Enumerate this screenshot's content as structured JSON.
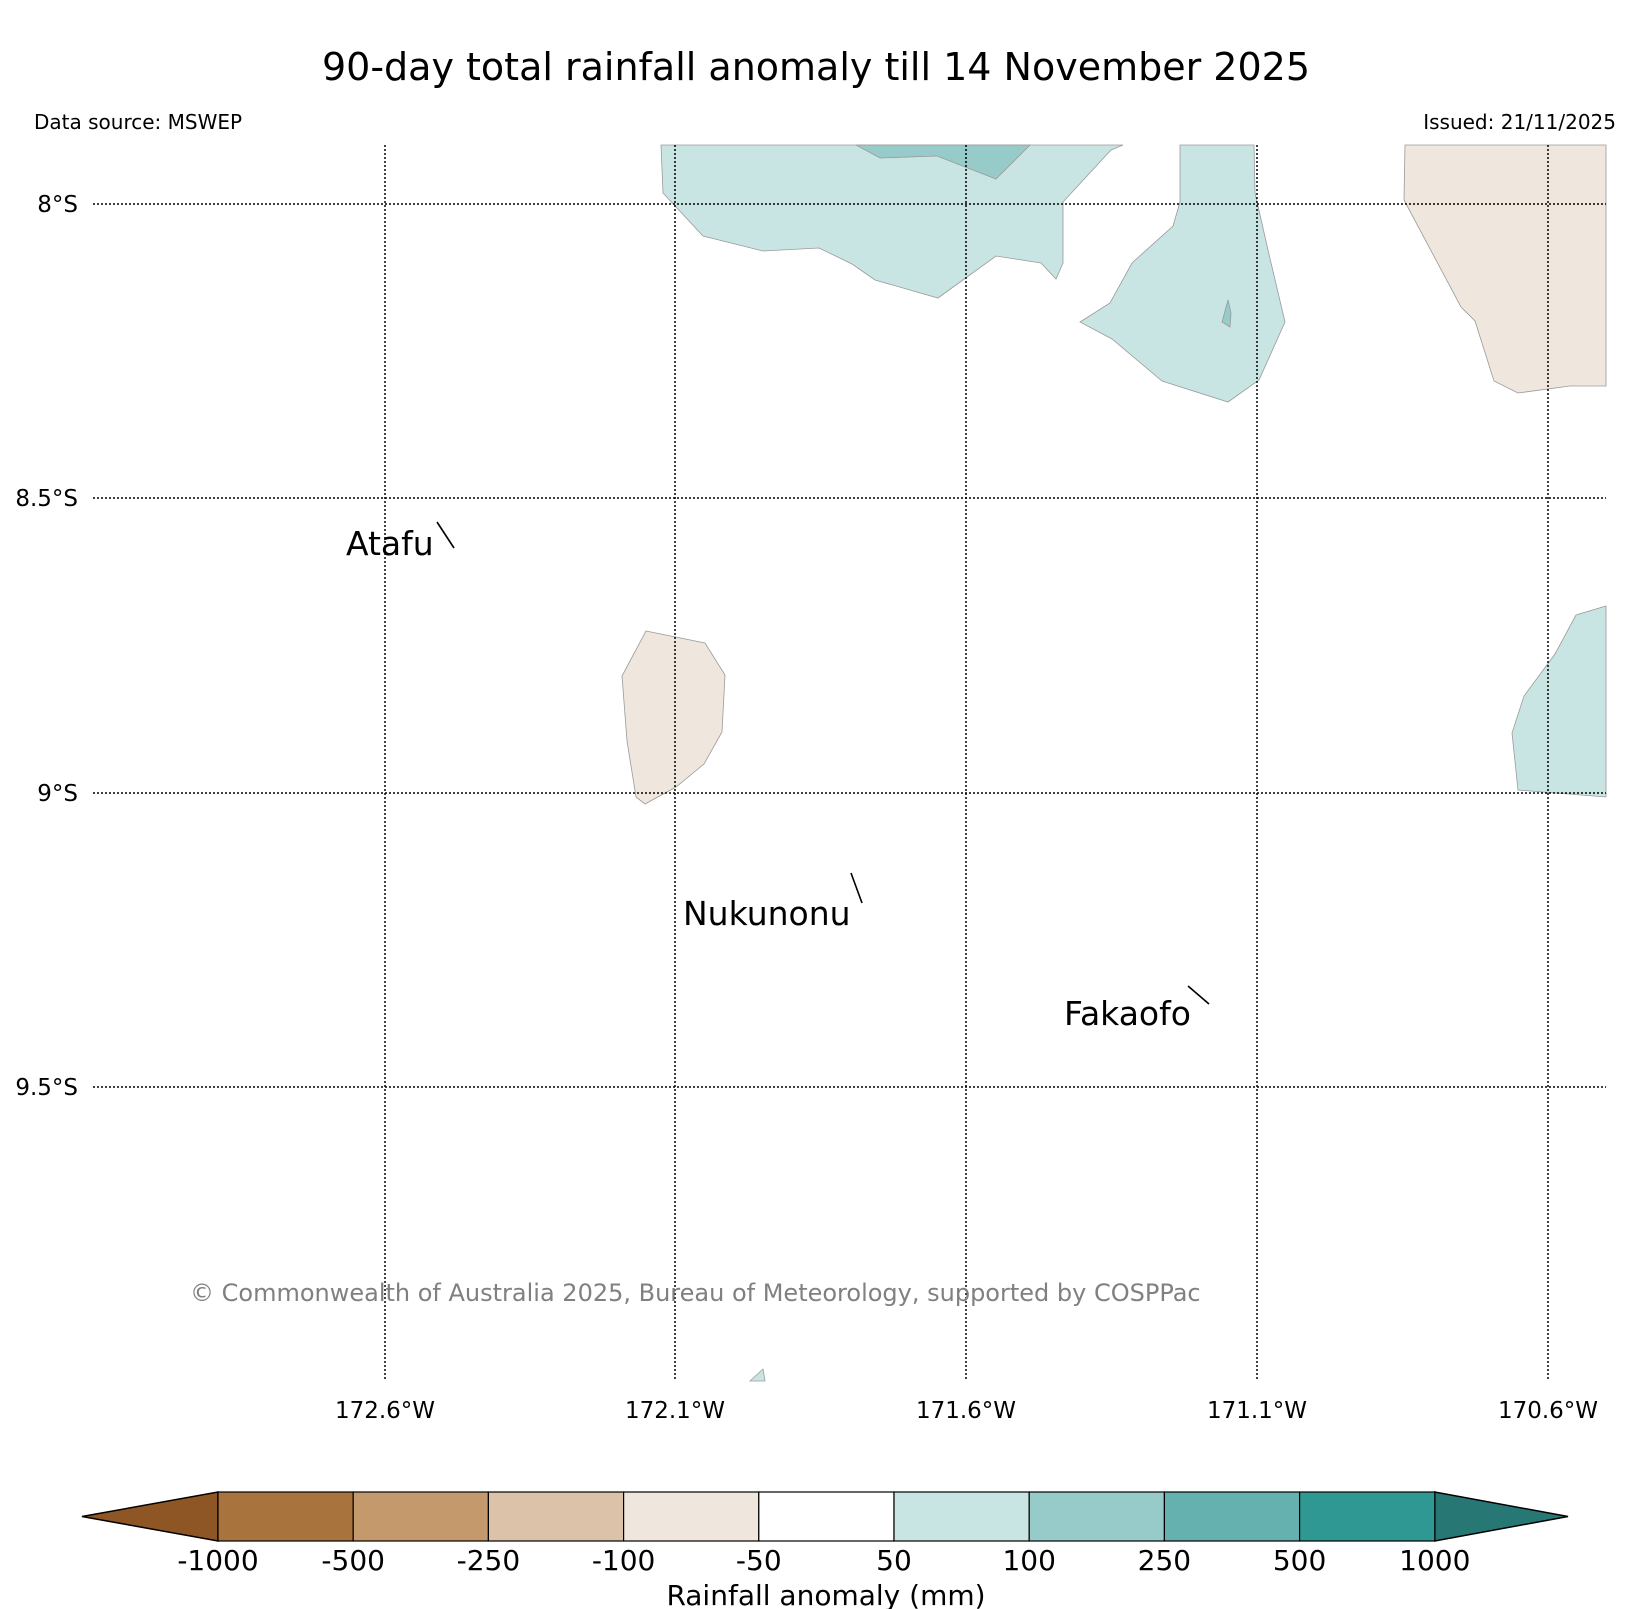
{
  "title": "90-day total rainfall anomaly till 14 November 2025",
  "data_source": "Data source: MSWEP",
  "issued": "Issued: 21/11/2025",
  "copyright": "© Commonwealth of Australia 2025, Bureau of Meteorology, supported by COSPPac",
  "map": {
    "lat_ticks": [
      "8°S",
      "8.5°S",
      "9°S",
      "9.5°S"
    ],
    "lon_ticks": [
      "172.6°W",
      "172.1°W",
      "171.6°W",
      "171.1°W",
      "170.6°W"
    ],
    "places": [
      {
        "name": "Atafu"
      },
      {
        "name": "Nukunonu"
      },
      {
        "name": "Fakaofo"
      }
    ],
    "regions": [
      {
        "category": "50 to 100",
        "color": "#c9e5e3"
      },
      {
        "category": "100 to 250",
        "color": "#97cbc9"
      },
      {
        "category": "-100 to -50",
        "color": "#efe6dd"
      }
    ]
  },
  "colorbar": {
    "label": "Rainfall anomaly (mm)",
    "ticks": [
      "-1000",
      "-500",
      "-250",
      "-100",
      "-50",
      "50",
      "100",
      "250",
      "500",
      "1000"
    ],
    "colors": [
      "#a9733e",
      "#c49a6c",
      "#dbc2a8",
      "#efe6dd",
      "#ffffff",
      "#c9e5e3",
      "#97cbc9",
      "#64b1af",
      "#2f9892"
    ],
    "under_color": "#8e5625",
    "over_color": "#277774"
  }
}
